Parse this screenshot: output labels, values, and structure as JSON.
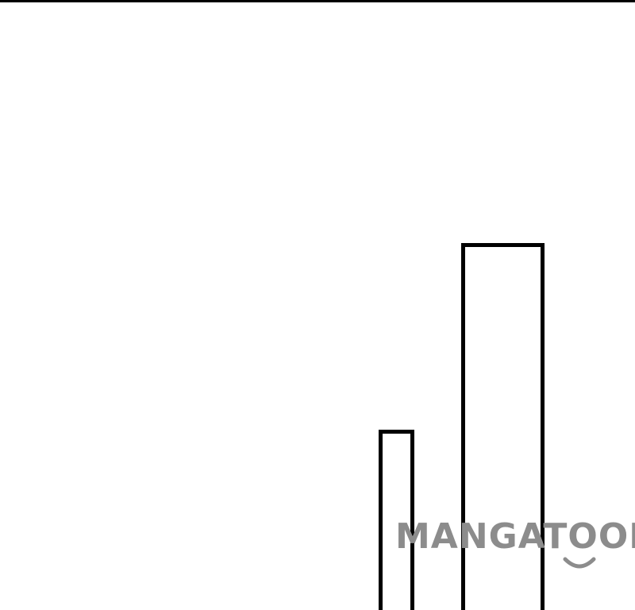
{
  "watermark": {
    "text": "MANGATOON",
    "color": "#8c8c8c",
    "icon": "smile-icon"
  },
  "colors": {
    "background": "#ffffff",
    "line": "#000000"
  }
}
